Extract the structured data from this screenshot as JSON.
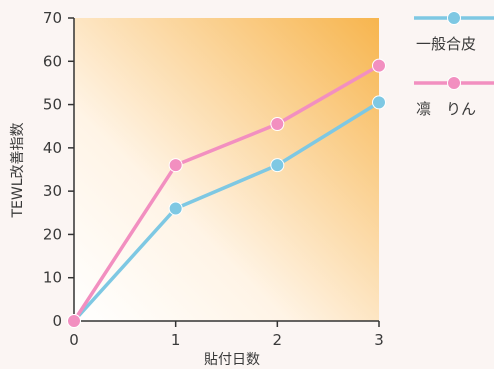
{
  "chart_data": {
    "type": "line",
    "xlabel": "貼付日数",
    "ylabel": "TEWL改善指数",
    "x": [
      0,
      1,
      2,
      3
    ],
    "xlim": [
      0,
      3
    ],
    "ylim": [
      0,
      70
    ],
    "yticks": [
      0,
      10,
      20,
      30,
      40,
      50,
      60,
      70
    ],
    "xticks": [
      0,
      1,
      2,
      3
    ],
    "grid": false,
    "legend_position": "right",
    "series": [
      {
        "name": "一般合皮",
        "values": [
          0,
          26,
          36,
          50.5
        ],
        "color": "#7ec8e3"
      },
      {
        "name": "凛　りん",
        "values": [
          0,
          36,
          45.5,
          59
        ],
        "color": "#f28fc0"
      }
    ],
    "plot_background": {
      "from": "#ffffff",
      "to": "#f7b54e"
    }
  }
}
